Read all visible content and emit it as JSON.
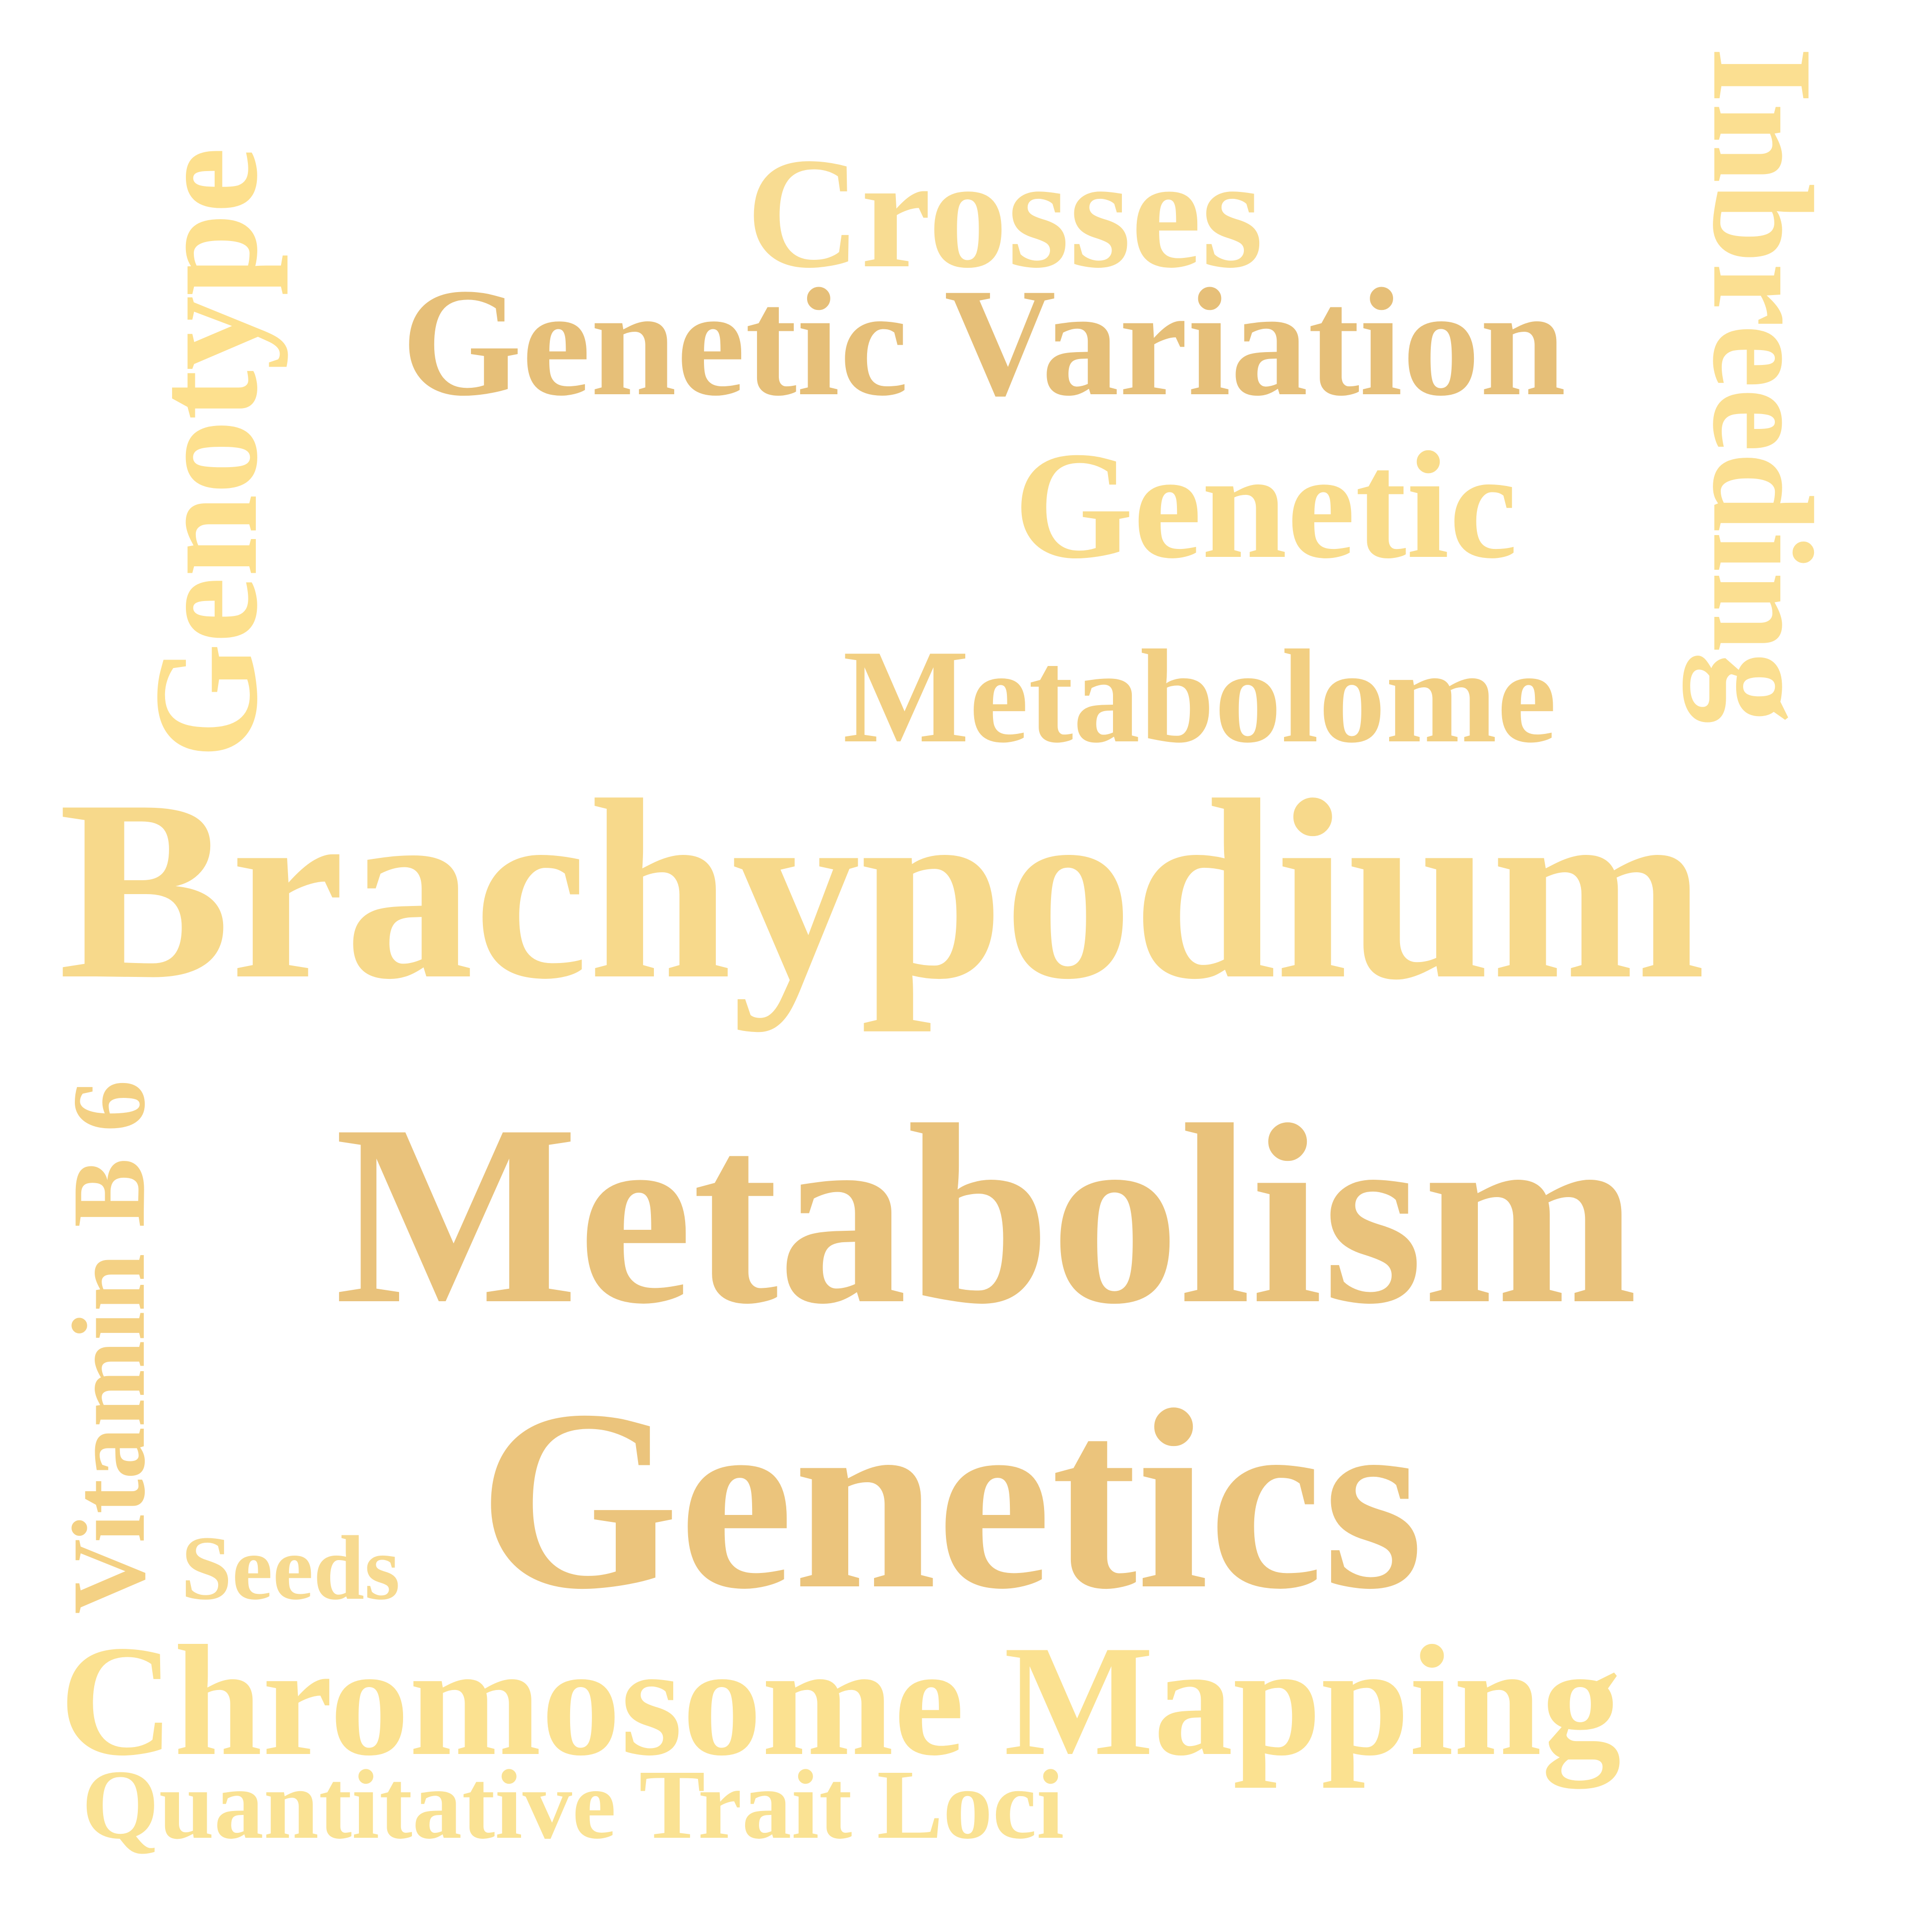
{
  "colors": {
    "background": "#ffffff",
    "light": "#f9dc8c",
    "medium": "#f1cc80",
    "dark": "#e8c07a"
  },
  "words": {
    "brachypodium": {
      "text": "Brachypodium",
      "color": "#f7d98b"
    },
    "metabolism": {
      "text": "Metabolism",
      "color": "#e9c27b"
    },
    "genetics": {
      "text": "Genetics",
      "color": "#ebc47c"
    },
    "crosses": {
      "text": "Crosses",
      "color": "#f8dc92"
    },
    "genetic_variation": {
      "text": "Genetic Variation",
      "color": "#e6bf78"
    },
    "genetic": {
      "text": "Genetic",
      "color": "#f9dc8b"
    },
    "metabolome": {
      "text": "Metabolome",
      "color": "#f2cf82"
    },
    "seeds": {
      "text": "Seeds",
      "color": "#f7da90"
    },
    "chromosome_mapping": {
      "text": "Chromosome Mapping",
      "color": "#fbe190"
    },
    "qtl": {
      "text": "Quantitative Trait Loci",
      "color": "#fae293"
    },
    "genotype": {
      "text": "Genotype",
      "color": "#fde08e"
    },
    "vitamin_b6": {
      "text": "Vitamin B 6",
      "color": "#f4d184"
    },
    "inbreeding": {
      "text": "Inbreeding",
      "color": "#fbdf91"
    }
  }
}
